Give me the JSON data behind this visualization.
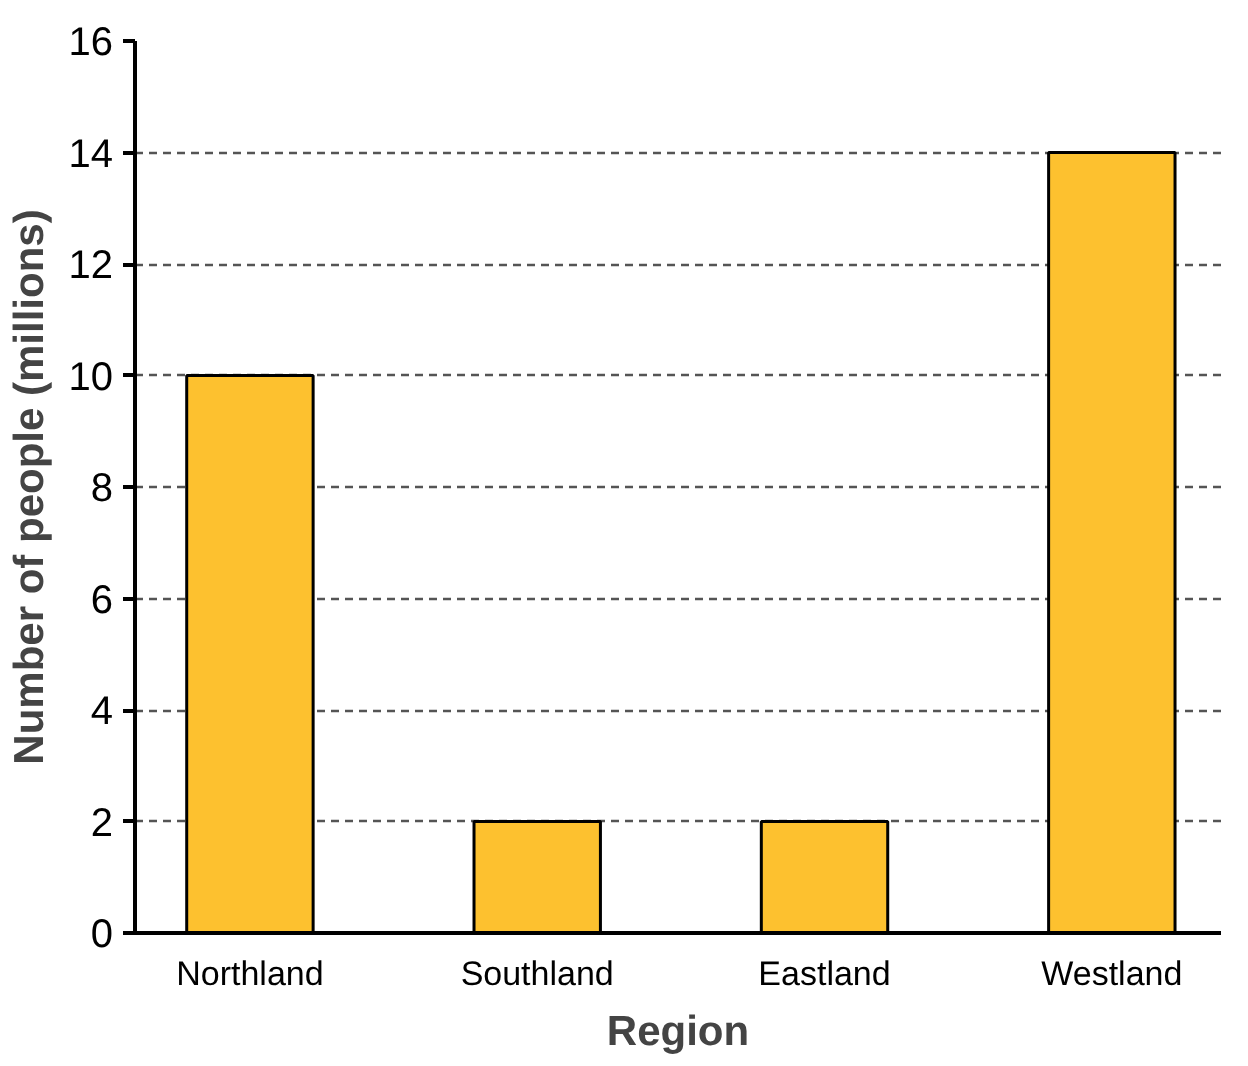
{
  "chart_data": {
    "type": "bar",
    "categories": [
      "Northland",
      "Southland",
      "Eastland",
      "Westland"
    ],
    "values": [
      10,
      2,
      2,
      14
    ],
    "color": "#fdc12f",
    "xlabel": "Region",
    "ylabel": "Number of people (millions)",
    "ylim": [
      0,
      16
    ],
    "yticks": [
      0,
      2,
      4,
      6,
      8,
      10,
      12,
      14,
      16
    ],
    "grid": "y"
  }
}
